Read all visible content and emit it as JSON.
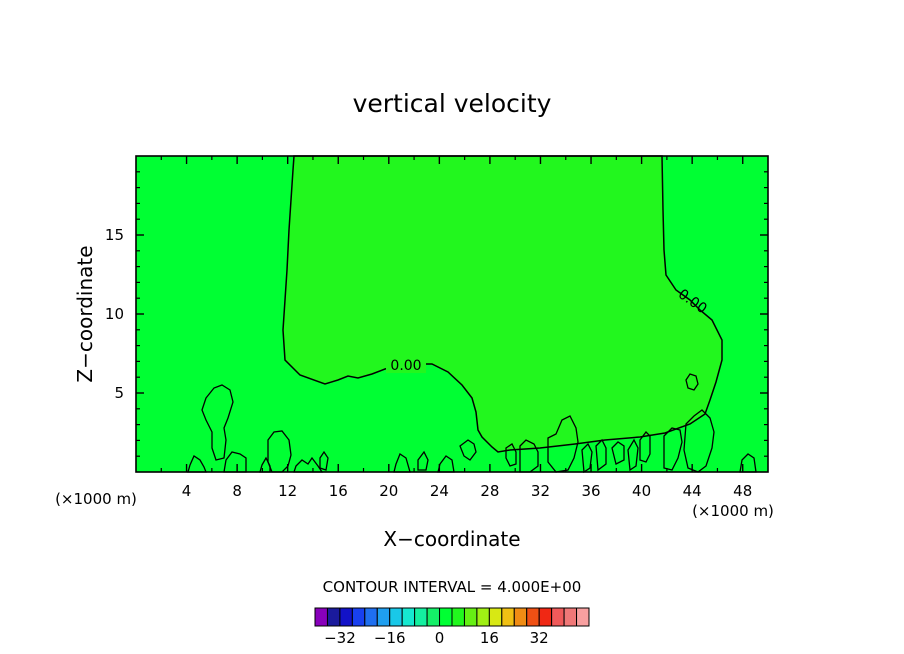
{
  "chart_data": {
    "type": "contour",
    "title": "vertical velocity",
    "xlabel": "X−coordinate",
    "ylabel": "Z−coordinate",
    "x_unit_label": "(×1000 m)",
    "y_unit_label": "(×1000 m)",
    "xlim": [
      0,
      50
    ],
    "ylim": [
      0,
      20
    ],
    "x_ticks": [
      "4",
      "8",
      "12",
      "16",
      "20",
      "24",
      "28",
      "32",
      "36",
      "40",
      "44",
      "48"
    ],
    "y_ticks": [
      "5",
      "10",
      "15"
    ],
    "contour_interval_text": "CONTOUR INTERVAL = 4.000E+00",
    "contour_line_labels": [
      "0.00",
      "0.00"
    ],
    "background_level_color": "#00ff33",
    "zero_region_color": "#22f71e",
    "colorbar": {
      "tick_labels": [
        "−32",
        "−16",
        "0",
        "16",
        "32"
      ],
      "colors": [
        "#8800bb",
        "#1a1a9c",
        "#1212c8",
        "#1840f0",
        "#1f6ff0",
        "#1f9ff0",
        "#19c8e8",
        "#16e8d0",
        "#14f0a0",
        "#14f068",
        "#00ff33",
        "#22f71e",
        "#66f014",
        "#a0f014",
        "#d8e814",
        "#f0c014",
        "#f08c14",
        "#f05014",
        "#f02814",
        "#f05a5a",
        "#f07878",
        "#f8a0a0"
      ]
    }
  }
}
